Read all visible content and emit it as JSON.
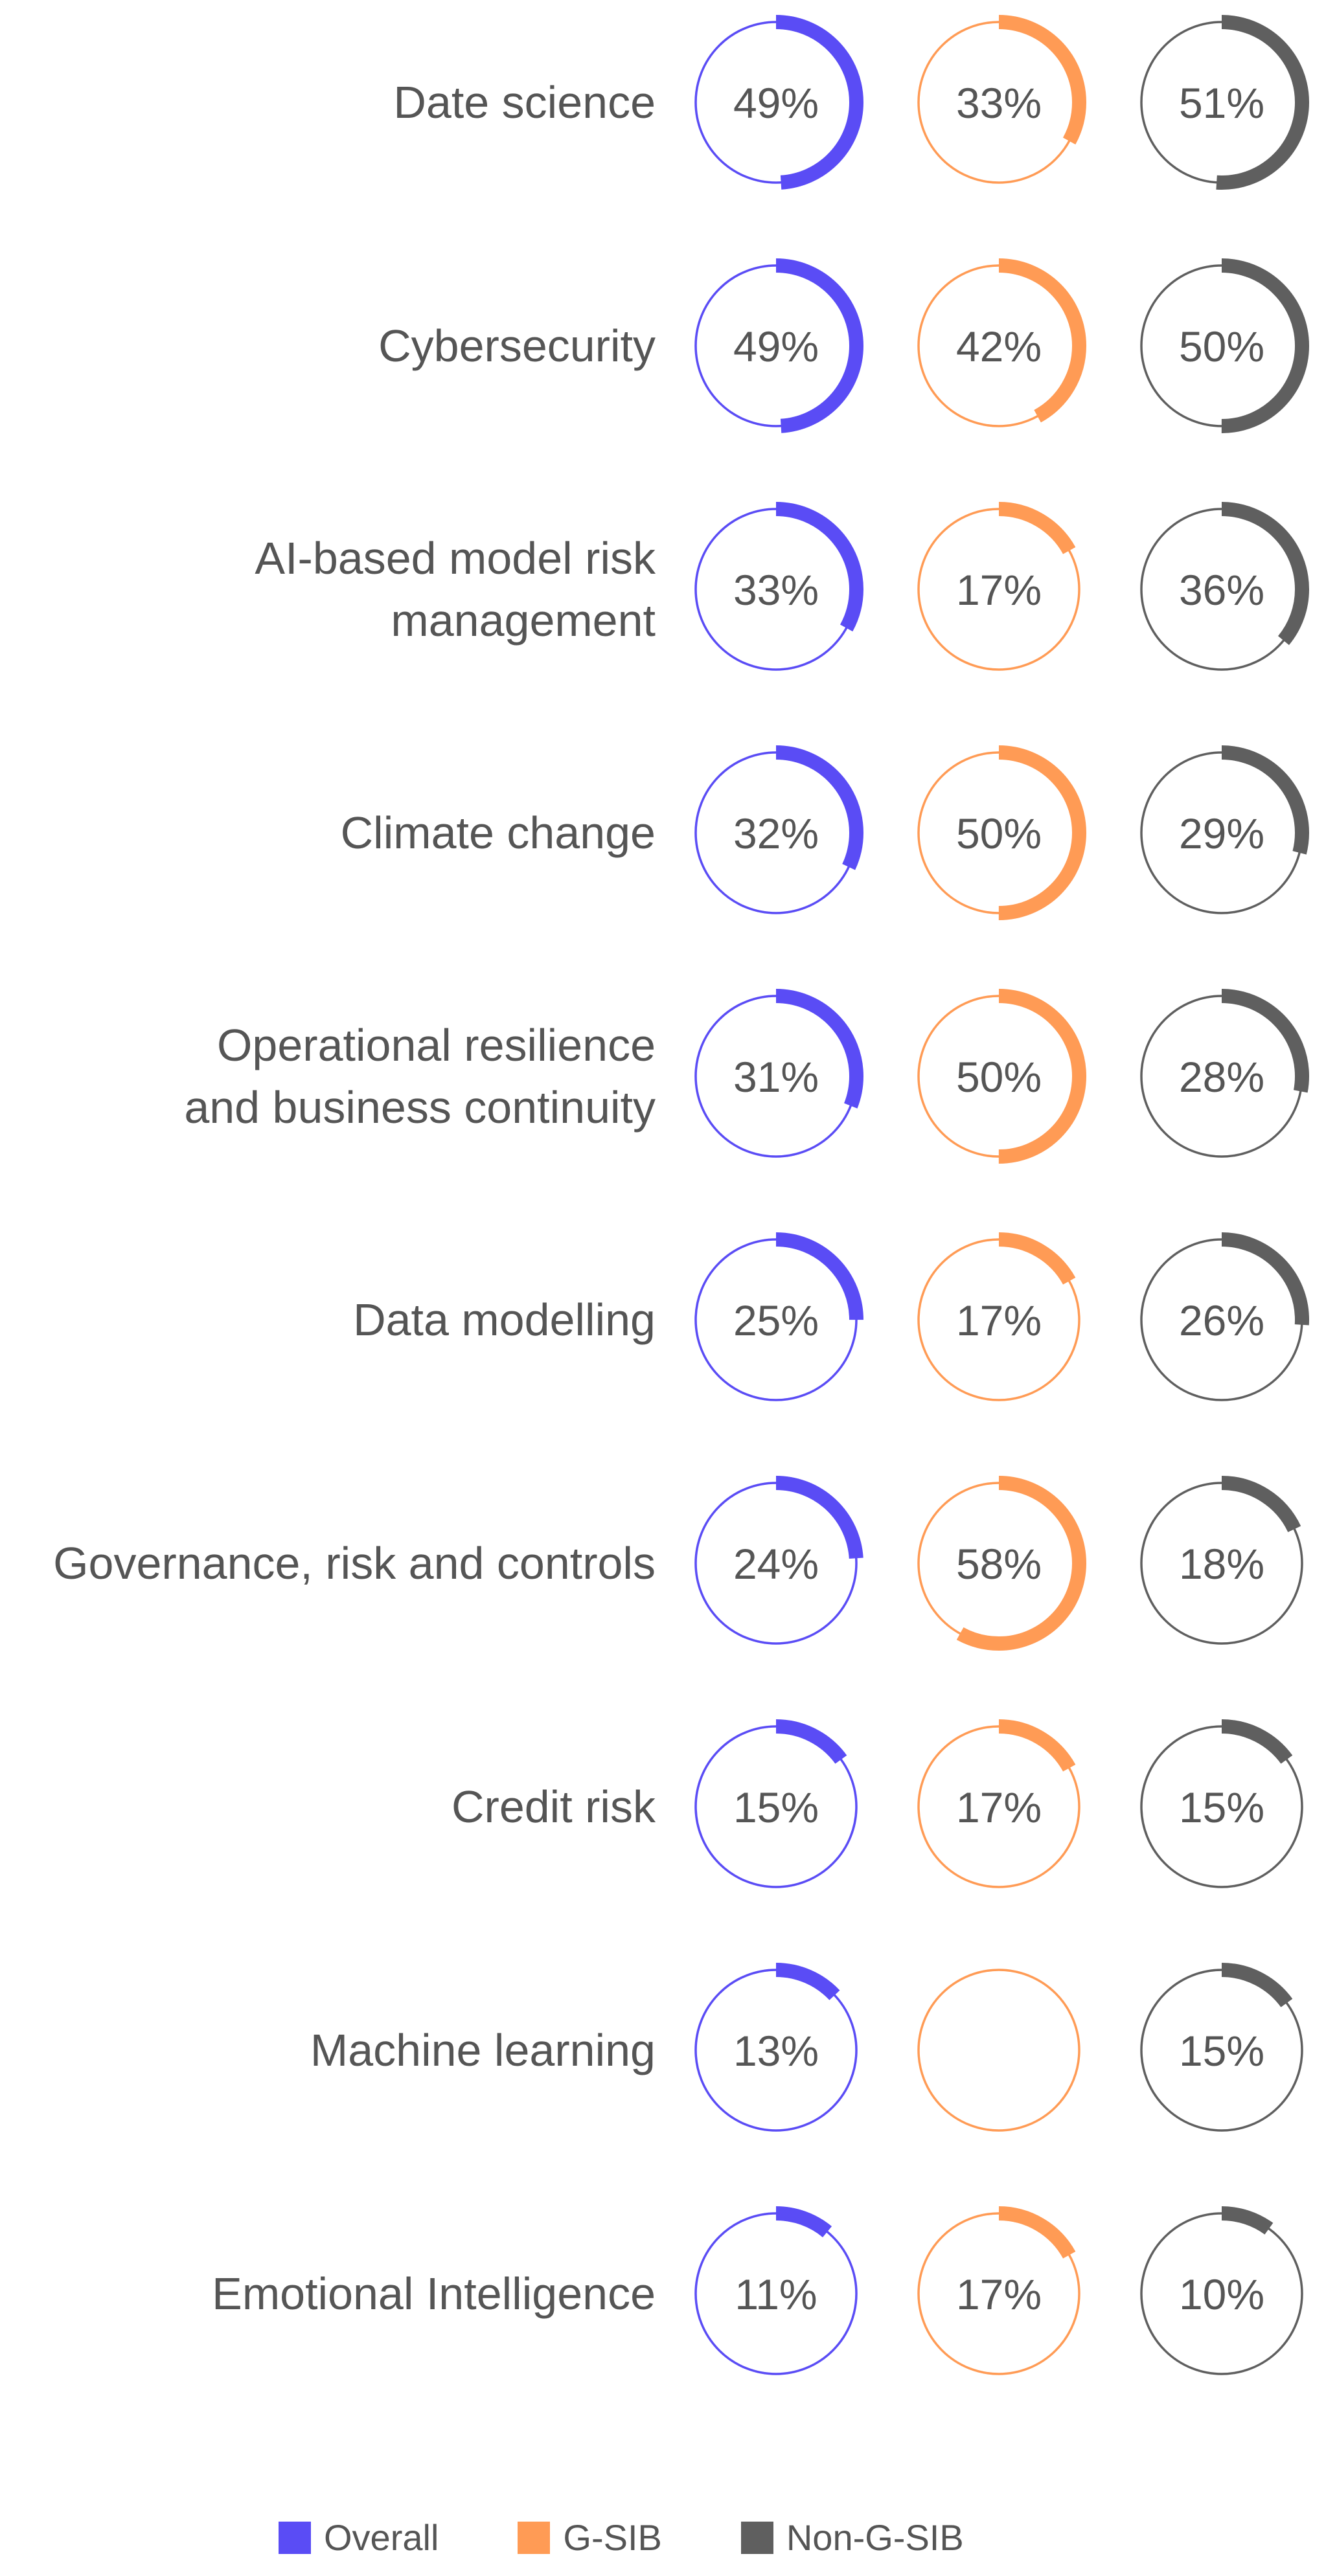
{
  "chart_data": {
    "type": "donut-matrix",
    "series": [
      {
        "name": "Overall",
        "color": "#5a4cf5"
      },
      {
        "name": "G-SIB",
        "color": "#ff9b55"
      },
      {
        "name": "Non-G-SIB",
        "color": "#5f5f5f"
      }
    ],
    "rows": [
      {
        "label": [
          "Date science"
        ],
        "values": [
          49,
          33,
          51
        ]
      },
      {
        "label": [
          "Cybersecurity"
        ],
        "values": [
          49,
          42,
          50
        ]
      },
      {
        "label": [
          "AI-based model risk",
          "management"
        ],
        "values": [
          33,
          17,
          36
        ]
      },
      {
        "label": [
          "Climate change"
        ],
        "values": [
          32,
          50,
          29
        ]
      },
      {
        "label": [
          "Operational resilience",
          "and business continuity"
        ],
        "values": [
          31,
          50,
          28
        ]
      },
      {
        "label": [
          "Data modelling"
        ],
        "values": [
          25,
          17,
          26
        ]
      },
      {
        "label": [
          "Governance, risk and controls"
        ],
        "values": [
          24,
          58,
          18
        ]
      },
      {
        "label": [
          "Credit risk"
        ],
        "values": [
          15,
          17,
          15
        ]
      },
      {
        "label": [
          "Machine learning"
        ],
        "values": [
          13,
          null,
          15
        ]
      },
      {
        "label": [
          "Emotional Intelligence"
        ],
        "values": [
          11,
          17,
          10
        ]
      }
    ],
    "legend_position": "bottom"
  }
}
